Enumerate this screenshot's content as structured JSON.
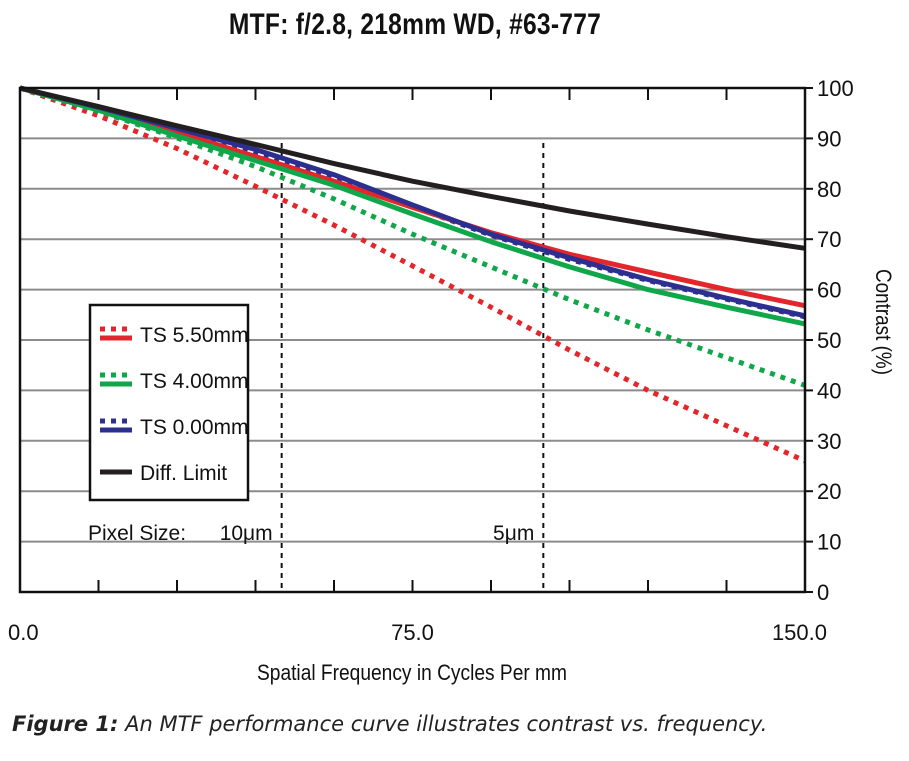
{
  "title": "MTF: f/2.8, 218mm WD, #63-777",
  "caption": {
    "label": "Figure 1:",
    "text": " An MTF performance curve illustrates contrast vs. frequency."
  },
  "chart_data": {
    "type": "line",
    "title": "MTF: f/2.8, 218mm WD, #63-777",
    "xlabel": "Spatial Frequency in Cycles Per mm",
    "ylabel": "Contrast (%)",
    "xlim": [
      0,
      150
    ],
    "ylim": [
      0,
      100
    ],
    "x_ticks": [
      "0.0",
      "75.0",
      "150.0"
    ],
    "y_ticks": [
      "0",
      "10",
      "20",
      "30",
      "40",
      "50",
      "60",
      "70",
      "80",
      "90",
      "100"
    ],
    "grid": true,
    "legend_position": "left-center",
    "x": [
      0,
      15,
      30,
      45,
      60,
      75,
      90,
      105,
      120,
      135,
      150
    ],
    "series": [
      {
        "name": "TS 5.50mm",
        "style": "solid",
        "color": "#e3262b",
        "values": [
          100,
          95.8,
          91.2,
          86.4,
          81.5,
          76.3,
          71.3,
          67.0,
          63.5,
          60.0,
          56.8
        ]
      },
      {
        "name": "TS 5.50mm",
        "style": "dotted",
        "color": "#e3262b",
        "values": [
          100,
          94.5,
          88.0,
          80.5,
          72.8,
          64.7,
          56.5,
          48.0,
          40.0,
          33.0,
          26.0
        ]
      },
      {
        "name": "TS 4.00mm",
        "style": "solid",
        "color": "#10a64a",
        "values": [
          100,
          95.6,
          90.5,
          85.6,
          80.7,
          75.0,
          69.5,
          64.5,
          60.0,
          56.5,
          53.2
        ]
      },
      {
        "name": "TS 4.00mm",
        "style": "dotted",
        "color": "#10a64a",
        "values": [
          100,
          95.4,
          90.1,
          84.4,
          78.0,
          71.0,
          64.5,
          58.0,
          52.0,
          46.5,
          41.0
        ]
      },
      {
        "name": "TS 0.00mm",
        "style": "solid",
        "color": "#2c2f8f",
        "values": [
          100,
          96.2,
          92.0,
          87.8,
          82.8,
          76.8,
          71.0,
          66.3,
          62.0,
          58.3,
          54.8
        ]
      },
      {
        "name": "TS 0.00mm",
        "style": "dotted",
        "color": "#2c2f8f",
        "values": [
          100,
          95.9,
          91.6,
          87.2,
          82.4,
          76.5,
          70.8,
          66.0,
          61.8,
          58.1,
          54.6
        ]
      },
      {
        "name": "Diff. Limit",
        "style": "solid",
        "color": "#231f20",
        "values": [
          100,
          96.3,
          92.5,
          88.8,
          85.0,
          81.5,
          78.5,
          75.6,
          73.0,
          70.5,
          68.2
        ]
      }
    ],
    "legend": [
      {
        "label": "TS 5.50mm",
        "color": "#e3262b",
        "dotted": true
      },
      {
        "label": "TS 4.00mm",
        "color": "#10a64a",
        "dotted": true
      },
      {
        "label": "TS 0.00mm",
        "color": "#2c2f8f",
        "dotted": true
      },
      {
        "label": "Diff. Limit",
        "color": "#231f20",
        "dotted": false
      }
    ],
    "annotations": {
      "pixel_size_label": "Pixel Size:",
      "markers": [
        {
          "x": 50,
          "label": "10μm"
        },
        {
          "x": 100,
          "label": "5μm"
        }
      ]
    }
  }
}
